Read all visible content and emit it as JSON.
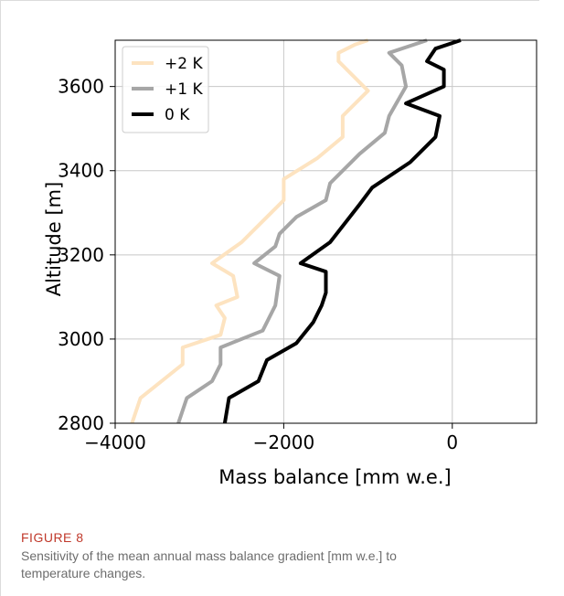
{
  "figure": {
    "label": "FIGURE 8",
    "caption": "Sensitivity of the mean annual mass balance gradient [mm w.e.] to temperature changes."
  },
  "chart_data": {
    "type": "line",
    "xlabel": "Mass balance [mm w.e.]",
    "ylabel": "Altitude [m]",
    "xlim": [
      -4000,
      1000
    ],
    "ylim": [
      2800,
      3710
    ],
    "xticks": [
      -4000,
      -2000,
      0
    ],
    "xtick_labels": [
      "−4000",
      "−2000",
      "0"
    ],
    "yticks": [
      2800,
      3000,
      3200,
      3400,
      3600
    ],
    "ytick_labels": [
      "2800",
      "3000",
      "3200",
      "3400",
      "3600"
    ],
    "grid": true,
    "legend_position": "top-left",
    "series": [
      {
        "name": "+2 K",
        "color": "#fde3c0",
        "points": [
          [
            -3800,
            2800
          ],
          [
            -3700,
            2860
          ],
          [
            -3200,
            2940
          ],
          [
            -3200,
            2980
          ],
          [
            -2750,
            3010
          ],
          [
            -2700,
            3050
          ],
          [
            -2800,
            3080
          ],
          [
            -2550,
            3100
          ],
          [
            -2600,
            3150
          ],
          [
            -2850,
            3180
          ],
          [
            -2500,
            3230
          ],
          [
            -2150,
            3300
          ],
          [
            -2000,
            3330
          ],
          [
            -2000,
            3380
          ],
          [
            -1600,
            3430
          ],
          [
            -1300,
            3480
          ],
          [
            -1300,
            3530
          ],
          [
            -1000,
            3590
          ],
          [
            -1350,
            3660
          ],
          [
            -1350,
            3680
          ],
          [
            -1150,
            3700
          ],
          [
            -1000,
            3710
          ]
        ]
      },
      {
        "name": "+1 K",
        "color": "#a6a6a6",
        "points": [
          [
            -3250,
            2800
          ],
          [
            -3150,
            2860
          ],
          [
            -2850,
            2900
          ],
          [
            -2750,
            2940
          ],
          [
            -2750,
            2980
          ],
          [
            -2250,
            3020
          ],
          [
            -2100,
            3080
          ],
          [
            -2050,
            3150
          ],
          [
            -2350,
            3180
          ],
          [
            -2100,
            3220
          ],
          [
            -2050,
            3250
          ],
          [
            -1850,
            3290
          ],
          [
            -1500,
            3330
          ],
          [
            -1450,
            3370
          ],
          [
            -1100,
            3440
          ],
          [
            -800,
            3490
          ],
          [
            -750,
            3530
          ],
          [
            -550,
            3600
          ],
          [
            -600,
            3650
          ],
          [
            -750,
            3680
          ],
          [
            -450,
            3700
          ],
          [
            -300,
            3710
          ]
        ]
      },
      {
        "name": "0 K",
        "color": "#000000",
        "points": [
          [
            -2700,
            2800
          ],
          [
            -2650,
            2860
          ],
          [
            -2300,
            2900
          ],
          [
            -2200,
            2950
          ],
          [
            -1850,
            2990
          ],
          [
            -1650,
            3040
          ],
          [
            -1550,
            3080
          ],
          [
            -1500,
            3110
          ],
          [
            -1500,
            3160
          ],
          [
            -1800,
            3180
          ],
          [
            -1450,
            3230
          ],
          [
            -1100,
            3320
          ],
          [
            -950,
            3360
          ],
          [
            -500,
            3420
          ],
          [
            -200,
            3480
          ],
          [
            -150,
            3530
          ],
          [
            -550,
            3560
          ],
          [
            -100,
            3600
          ],
          [
            -100,
            3640
          ],
          [
            -300,
            3660
          ],
          [
            -200,
            3690
          ],
          [
            100,
            3710
          ]
        ]
      }
    ]
  }
}
